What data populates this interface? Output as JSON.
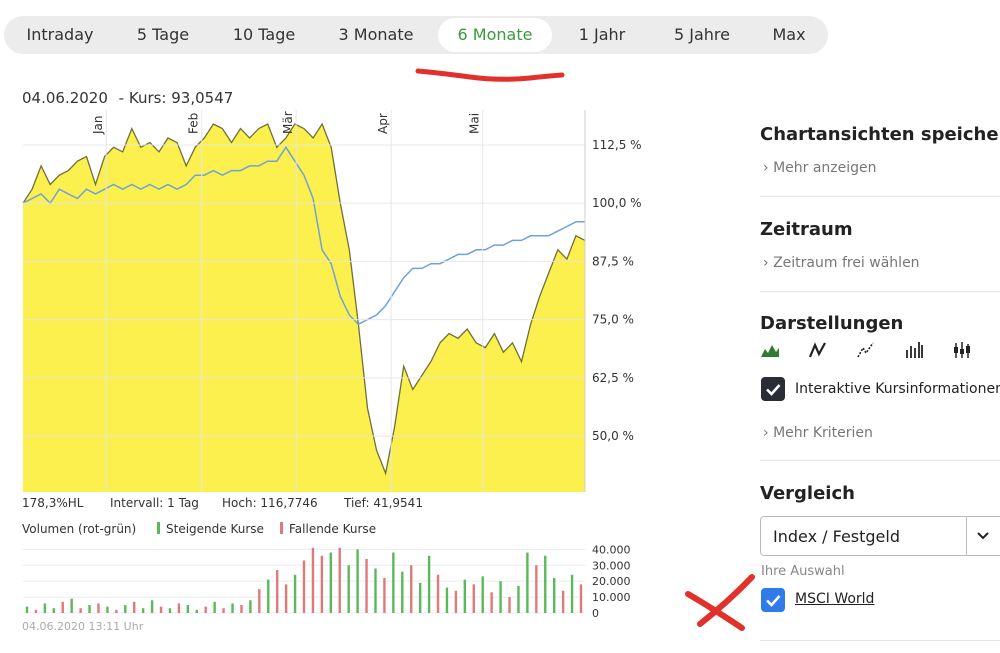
{
  "tabs": [
    {
      "label": "Intraday"
    },
    {
      "label": "5 Tage"
    },
    {
      "label": "10 Tage"
    },
    {
      "label": "3 Monate"
    },
    {
      "label": "6 Monate",
      "active": true
    },
    {
      "label": "1 Jahr"
    },
    {
      "label": "5 Jahre"
    },
    {
      "label": "Max"
    }
  ],
  "info": {
    "date": "04.06.2020",
    "kurs": "- Kurs: 93,0547"
  },
  "stats": {
    "hl": "178,3%HL",
    "intervall": "Intervall: 1 Tag",
    "hoch": "Hoch: 116,7746",
    "tief": "Tief: 41,9541"
  },
  "volume_legend": {
    "title": "Volumen (rot-grün)",
    "up": "Steigende Kurse",
    "down": "Fallende Kurse"
  },
  "timestamp": "04.06.2020 13:11 Uhr",
  "colors": {
    "accent_green": "#3c9a3c",
    "area_fill": "#fbf04d",
    "area_line": "#6f6f3a",
    "index_line": "#6fa2da",
    "vol_up": "#5cb85c",
    "vol_down": "#e07a7a",
    "checkbox_dark": "#2a2d35",
    "checkbox_blue": "#2f7bea",
    "annotation_red": "#e2302a"
  },
  "sidebar": {
    "chartansichten": {
      "title": "Chartansichten speichern",
      "link": "Mehr anzeigen"
    },
    "zeitraum": {
      "title": "Zeitraum",
      "link": "Zeitraum frei wählen"
    },
    "darstellungen": {
      "title": "Darstellungen",
      "icons": [
        "area-chart-icon",
        "line-chart-icon",
        "dotted-line-chart-icon",
        "bar-ohlc-chart-icon",
        "candlestick-chart-icon"
      ],
      "checkbox_label": "Interaktive Kursinformationen",
      "checkbox_checked": true,
      "more": "Mehr Kriterien"
    },
    "vergleich": {
      "title": "Vergleich",
      "dropdown_value": "Index / Festgeld",
      "selection_label": "Ihre Auswahl",
      "selection_item": "MSCI World",
      "selection_checked": true
    }
  },
  "chart_data": {
    "type": "area",
    "x_tick_labels": [
      "Jan",
      "Feb",
      "Mär",
      "Apr",
      "Mai"
    ],
    "y_tick_labels": [
      "112,5 %",
      "100,0 %",
      "87,5 %",
      "75,0 %",
      "62,5 %",
      "50,0 %"
    ],
    "y_ticks": [
      112.5,
      100,
      87.5,
      75,
      62.5,
      50
    ],
    "ylim": [
      38,
      120
    ],
    "grid": true,
    "series": [
      {
        "style": "area",
        "values": [
          100,
          103,
          108,
          104,
          106,
          107,
          109,
          110,
          104,
          110,
          112,
          111,
          116,
          112,
          113,
          111,
          114,
          113,
          108,
          112,
          114,
          117,
          116,
          113,
          116,
          114,
          116,
          117,
          112,
          114,
          117,
          116,
          114,
          117,
          112,
          100,
          90,
          74,
          56,
          47,
          42,
          52,
          65,
          60,
          63,
          66,
          70,
          72,
          71,
          73,
          70,
          69,
          72,
          68,
          70,
          66,
          74,
          80,
          85,
          90,
          88,
          93,
          92
        ]
      },
      {
        "style": "line",
        "values": [
          100,
          101,
          102,
          100,
          103,
          102,
          101,
          103,
          102,
          103,
          104,
          103,
          104,
          103,
          104,
          103,
          104,
          103,
          104,
          106,
          106,
          107,
          106,
          107,
          107,
          108,
          108,
          109,
          109,
          112,
          109,
          106,
          101,
          90,
          87,
          80,
          76,
          74,
          75,
          76,
          78,
          81,
          84,
          86,
          86,
          87,
          87,
          88,
          89,
          89,
          90,
          90,
          91,
          91,
          92,
          92,
          93,
          93,
          93,
          94,
          95,
          96,
          96
        ]
      }
    ],
    "volume_axis_labels": [
      "40.000",
      "30.000",
      "20.000",
      "10.000",
      "0"
    ],
    "volume_ylim": [
      0,
      44000
    ],
    "volume": [
      {
        "v": 4000,
        "dir": "up"
      },
      {
        "v": 2000,
        "dir": "down"
      },
      {
        "v": 6000,
        "dir": "up"
      },
      {
        "v": 3000,
        "dir": "up"
      },
      {
        "v": 7000,
        "dir": "down"
      },
      {
        "v": 9000,
        "dir": "up"
      },
      {
        "v": 3000,
        "dir": "down"
      },
      {
        "v": 5000,
        "dir": "up"
      },
      {
        "v": 6000,
        "dir": "down"
      },
      {
        "v": 4000,
        "dir": "up"
      },
      {
        "v": 2000,
        "dir": "down"
      },
      {
        "v": 5000,
        "dir": "up"
      },
      {
        "v": 7000,
        "dir": "down"
      },
      {
        "v": 3000,
        "dir": "up"
      },
      {
        "v": 8000,
        "dir": "up"
      },
      {
        "v": 4000,
        "dir": "down"
      },
      {
        "v": 3000,
        "dir": "up"
      },
      {
        "v": 6000,
        "dir": "down"
      },
      {
        "v": 5000,
        "dir": "up"
      },
      {
        "v": 2000,
        "dir": "up"
      },
      {
        "v": 4000,
        "dir": "down"
      },
      {
        "v": 7000,
        "dir": "up"
      },
      {
        "v": 3000,
        "dir": "down"
      },
      {
        "v": 6000,
        "dir": "up"
      },
      {
        "v": 5000,
        "dir": "down"
      },
      {
        "v": 8000,
        "dir": "up"
      },
      {
        "v": 15000,
        "dir": "down"
      },
      {
        "v": 21000,
        "dir": "up"
      },
      {
        "v": 27000,
        "dir": "down"
      },
      {
        "v": 18000,
        "dir": "down"
      },
      {
        "v": 24000,
        "dir": "up"
      },
      {
        "v": 33000,
        "dir": "down"
      },
      {
        "v": 41000,
        "dir": "down"
      },
      {
        "v": 36000,
        "dir": "down"
      },
      {
        "v": 38000,
        "dir": "up"
      },
      {
        "v": 41000,
        "dir": "down"
      },
      {
        "v": 30000,
        "dir": "up"
      },
      {
        "v": 40000,
        "dir": "up"
      },
      {
        "v": 34000,
        "dir": "down"
      },
      {
        "v": 28000,
        "dir": "up"
      },
      {
        "v": 22000,
        "dir": "down"
      },
      {
        "v": 38000,
        "dir": "up"
      },
      {
        "v": 26000,
        "dir": "up"
      },
      {
        "v": 30000,
        "dir": "down"
      },
      {
        "v": 19000,
        "dir": "up"
      },
      {
        "v": 36000,
        "dir": "up"
      },
      {
        "v": 24000,
        "dir": "down"
      },
      {
        "v": 16000,
        "dir": "up"
      },
      {
        "v": 14000,
        "dir": "down"
      },
      {
        "v": 21000,
        "dir": "up"
      },
      {
        "v": 18000,
        "dir": "down"
      },
      {
        "v": 23000,
        "dir": "up"
      },
      {
        "v": 13000,
        "dir": "down"
      },
      {
        "v": 20000,
        "dir": "up"
      },
      {
        "v": 10000,
        "dir": "down"
      },
      {
        "v": 17000,
        "dir": "up"
      },
      {
        "v": 38000,
        "dir": "up"
      },
      {
        "v": 30000,
        "dir": "down"
      },
      {
        "v": 36000,
        "dir": "up"
      },
      {
        "v": 22000,
        "dir": "up"
      },
      {
        "v": 14000,
        "dir": "down"
      },
      {
        "v": 24000,
        "dir": "up"
      },
      {
        "v": 18000,
        "dir": "down"
      }
    ]
  }
}
